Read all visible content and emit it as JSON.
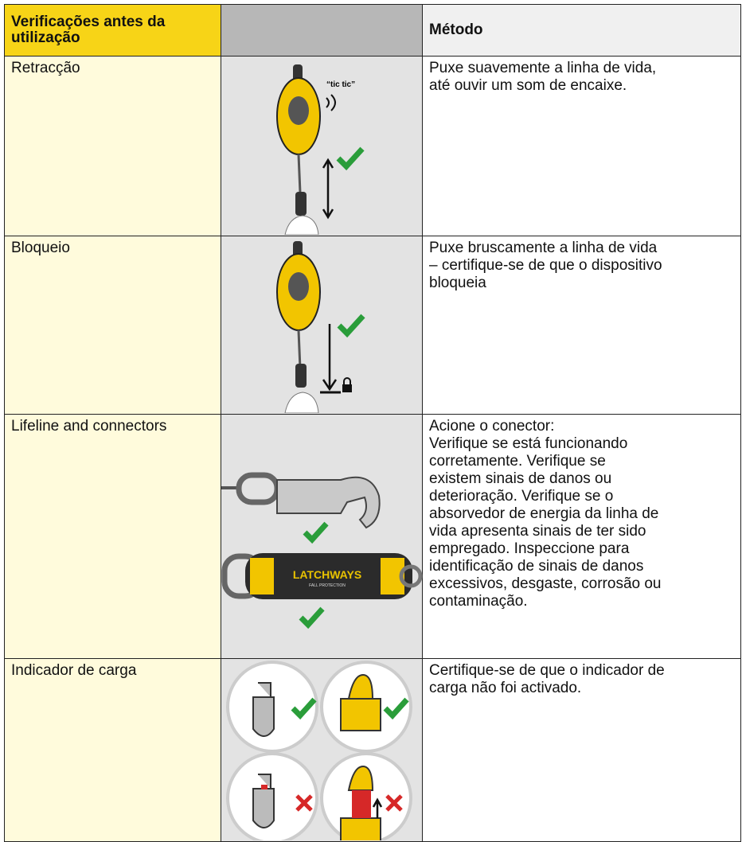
{
  "header": {
    "check": "Verificações antes da utilização",
    "method": "Método"
  },
  "rows": [
    {
      "check": "Retracção",
      "method": [
        "Puxe suavemente a linha de vida,",
        "até ouvir um som de encaixe."
      ]
    },
    {
      "check": "Bloqueio",
      "method": [
        "Puxe bruscamente a linha de vida",
        "– certifique-se de que o dispositivo",
        "bloqueia"
      ]
    },
    {
      "check": "Lifeline and connectors",
      "method": [
        "Acione o conector:",
        "Verifique se está funcionando",
        "corretamente. Verifique se",
        "existem sinais de danos ou",
        "deterioração. Verifique se o",
        "absorvedor de energia da linha de",
        "vida apresenta sinais de ter sido",
        "empregado. Inspeccione para",
        "identificação de sinais de danos",
        "excessivos, desgaste, corrosão ou",
        "contaminação."
      ]
    },
    {
      "check": "Indicador de carga",
      "method": [
        "Certifique-se de que o indicador de",
        "carga não foi activado."
      ]
    }
  ],
  "illustrations": {
    "sound": "“tic tic”",
    "brand": "LATCHWAYS",
    "brand_sub": "FALL PROTECTION"
  }
}
